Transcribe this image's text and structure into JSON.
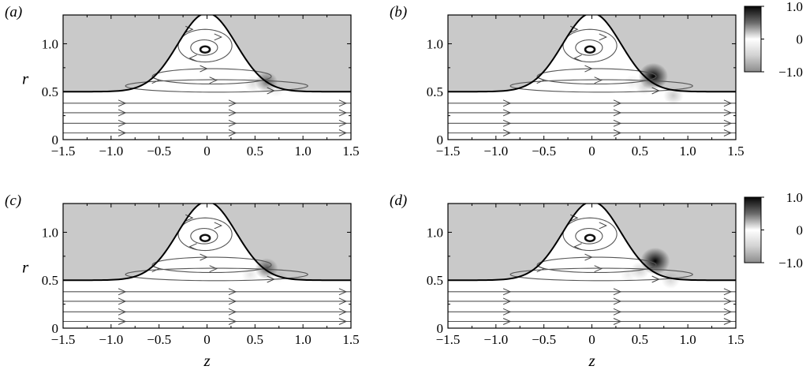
{
  "chart_data": [
    {
      "type": "heatmap",
      "panel_label": "(a)",
      "xlabel": "",
      "ylabel": "r",
      "xlim": [
        -1.5,
        1.5
      ],
      "ylim": [
        0,
        1.3
      ],
      "xticks": [
        "−1.5",
        "−1.0",
        "−0.5",
        "0",
        "0.5",
        "1.0",
        "1.5"
      ],
      "yticks": [
        "0",
        "0.5",
        "1.0"
      ],
      "blobs": [
        {
          "z": 0.48,
          "r": 0.58,
          "value": -0.25
        },
        {
          "z": 0.62,
          "r": 0.6,
          "value": 0.55
        },
        {
          "z": 0.72,
          "r": 0.52,
          "value": -0.15
        }
      ]
    },
    {
      "type": "heatmap",
      "panel_label": "(b)",
      "xlabel": "",
      "ylabel": "",
      "xlim": [
        -1.5,
        1.5
      ],
      "ylim": [
        0,
        1.3
      ],
      "xticks": [
        "−1.5",
        "−1.0",
        "−0.5",
        "0",
        "0.5",
        "1.0",
        "1.5"
      ],
      "yticks": [
        "0",
        "0.5",
        "1.0"
      ],
      "colorbar": {
        "ticks": [
          "1.0",
          "0",
          "−1.0"
        ],
        "range": [
          -1.0,
          1.0
        ]
      },
      "blobs": [
        {
          "z": 0.64,
          "r": 0.66,
          "value": 1.0
        },
        {
          "z": 0.55,
          "r": 0.56,
          "value": -0.35
        },
        {
          "z": 0.85,
          "r": 0.46,
          "value": -0.4
        },
        {
          "z": 0.42,
          "r": 0.6,
          "value": -0.15
        }
      ]
    },
    {
      "type": "heatmap",
      "panel_label": "(c)",
      "xlabel": "z",
      "ylabel": "r",
      "xlim": [
        -1.5,
        1.5
      ],
      "ylim": [
        0,
        1.3
      ],
      "xticks": [
        "−1.5",
        "−1.0",
        "−0.5",
        "0",
        "0.5",
        "1.0",
        "1.5"
      ],
      "yticks": [
        "0",
        "0.5",
        "1.0"
      ],
      "blobs": [
        {
          "z": 0.62,
          "r": 0.62,
          "value": 0.6
        },
        {
          "z": 0.45,
          "r": 0.56,
          "value": -0.2
        },
        {
          "z": 0.75,
          "r": 0.55,
          "value": -0.15
        }
      ]
    },
    {
      "type": "heatmap",
      "panel_label": "(d)",
      "xlabel": "z",
      "ylabel": "",
      "xlim": [
        -1.5,
        1.5
      ],
      "ylim": [
        0,
        1.3
      ],
      "xticks": [
        "−1.5",
        "−1.0",
        "−0.5",
        "0",
        "0.5",
        "1.0",
        "1.5"
      ],
      "yticks": [
        "0",
        "0.5",
        "1.0"
      ],
      "colorbar": {
        "ticks": [
          "1.0",
          "0",
          "−1.0"
        ],
        "range": [
          -1.0,
          1.0
        ]
      },
      "blobs": [
        {
          "z": 0.66,
          "r": 0.7,
          "value": 1.0
        },
        {
          "z": 0.5,
          "r": 0.6,
          "value": -0.35
        },
        {
          "z": 0.82,
          "r": 0.5,
          "value": -0.3
        },
        {
          "z": 0.38,
          "r": 0.56,
          "value": -0.15
        }
      ]
    }
  ]
}
